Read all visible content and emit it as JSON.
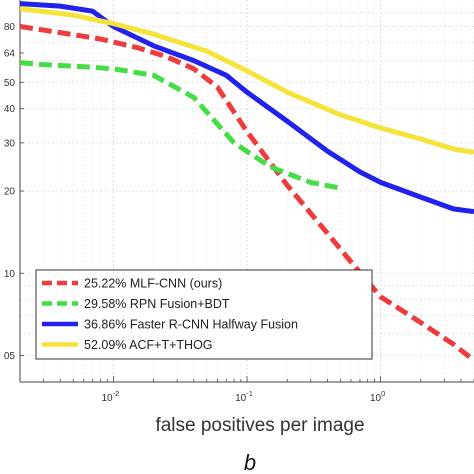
{
  "chart_data": {
    "type": "line",
    "title": "",
    "xlabel": "false positives per image",
    "ylabel": "",
    "x_scale": "log",
    "y_scale": "log",
    "xlim": [
      0.002,
      5
    ],
    "ylim": [
      0.04,
      1
    ],
    "grid": true,
    "legend_position": "bottom-left",
    "x_ticks": [
      {
        "value": 0.01,
        "base": "10",
        "exp": "-2"
      },
      {
        "value": 0.1,
        "base": "10",
        "exp": "-1"
      },
      {
        "value": 1,
        "base": "10",
        "exp": "0"
      }
    ],
    "y_ticks": [
      {
        "value": 0.8,
        "label": "80"
      },
      {
        "value": 0.64,
        "label": "64"
      },
      {
        "value": 0.5,
        "label": "50"
      },
      {
        "value": 0.4,
        "label": "40"
      },
      {
        "value": 0.3,
        "label": "30"
      },
      {
        "value": 0.2,
        "label": "20"
      },
      {
        "value": 0.1,
        "label": "10"
      },
      {
        "value": 0.05,
        "label": "05"
      }
    ],
    "series": [
      {
        "name": "25.22% MLF-CNN (ours)",
        "color": "#ee3b3b",
        "style": "dashed",
        "points": [
          [
            0.002,
            0.8
          ],
          [
            0.004,
            0.76
          ],
          [
            0.008,
            0.72
          ],
          [
            0.015,
            0.67
          ],
          [
            0.025,
            0.62
          ],
          [
            0.04,
            0.56
          ],
          [
            0.06,
            0.48
          ],
          [
            0.1,
            0.33
          ],
          [
            0.2,
            0.21
          ],
          [
            0.4,
            0.14
          ],
          [
            0.6,
            0.11
          ],
          [
            1.0,
            0.082
          ],
          [
            2.0,
            0.066
          ],
          [
            3.5,
            0.055
          ],
          [
            5.0,
            0.048
          ]
        ]
      },
      {
        "name": "29.58% RPN Fusion+BDT",
        "color": "#44dd44",
        "style": "dashed",
        "points": [
          [
            0.002,
            0.59
          ],
          [
            0.003,
            0.58
          ],
          [
            0.006,
            0.57
          ],
          [
            0.01,
            0.56
          ],
          [
            0.02,
            0.53
          ],
          [
            0.04,
            0.44
          ],
          [
            0.08,
            0.3
          ],
          [
            0.15,
            0.245
          ],
          [
            0.3,
            0.215
          ],
          [
            0.5,
            0.205
          ]
        ]
      },
      {
        "name": "36.86% Faster R-CNN Halfway Fusion",
        "color": "#2222ee",
        "style": "solid",
        "points": [
          [
            0.002,
            0.97
          ],
          [
            0.004,
            0.95
          ],
          [
            0.007,
            0.91
          ],
          [
            0.01,
            0.8
          ],
          [
            0.02,
            0.68
          ],
          [
            0.04,
            0.6
          ],
          [
            0.07,
            0.53
          ],
          [
            0.1,
            0.46
          ],
          [
            0.2,
            0.36
          ],
          [
            0.4,
            0.28
          ],
          [
            0.7,
            0.235
          ],
          [
            1.0,
            0.215
          ],
          [
            2.0,
            0.19
          ],
          [
            3.5,
            0.172
          ],
          [
            5.0,
            0.168
          ]
        ]
      },
      {
        "name": "52.09% ACF+T+THOG",
        "color": "#f5e23a",
        "style": "solid",
        "points": [
          [
            0.002,
            0.93
          ],
          [
            0.005,
            0.88
          ],
          [
            0.01,
            0.82
          ],
          [
            0.02,
            0.75
          ],
          [
            0.05,
            0.65
          ],
          [
            0.1,
            0.55
          ],
          [
            0.2,
            0.46
          ],
          [
            0.5,
            0.38
          ],
          [
            1.0,
            0.34
          ],
          [
            2.0,
            0.31
          ],
          [
            3.5,
            0.285
          ],
          [
            5.0,
            0.277
          ]
        ]
      }
    ]
  },
  "panel_label": "b"
}
